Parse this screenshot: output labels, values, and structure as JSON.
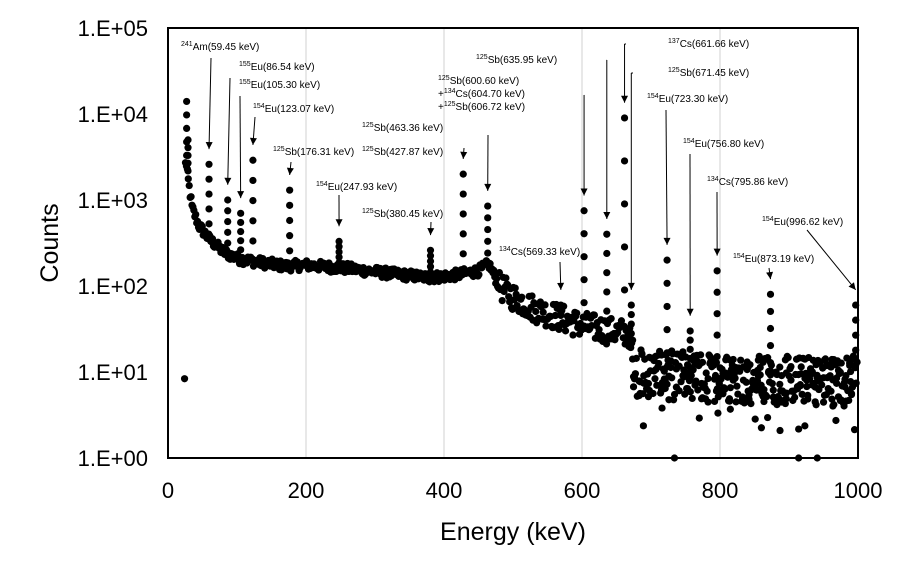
{
  "chart_data": {
    "type": "scatter",
    "title": "",
    "xlabel": "Energy (keV)",
    "ylabel": "Counts",
    "xlim": [
      0,
      1000
    ],
    "ylim": [
      1,
      100000
    ],
    "yscale": "log",
    "grid": "vertical major gridlines",
    "legend": "none",
    "x_ticks": [
      {
        "value": 0,
        "label": "0"
      },
      {
        "value": 200,
        "label": "200"
      },
      {
        "value": 400,
        "label": "400"
      },
      {
        "value": 600,
        "label": "600"
      },
      {
        "value": 800,
        "label": "800"
      },
      {
        "value": 1000,
        "label": "1000"
      }
    ],
    "y_ticks": [
      {
        "value": 1,
        "label": "1.E+00"
      },
      {
        "value": 10,
        "label": "1.E+01"
      },
      {
        "value": 100,
        "label": "1.E+02"
      },
      {
        "value": 1000,
        "label": "1.E+03"
      },
      {
        "value": 10000,
        "label": "1.E+04"
      },
      {
        "value": 100000,
        "label": "1.E+05"
      }
    ],
    "marker_color": "#000000",
    "annotations": [
      {
        "iso": "241",
        "nuc": "Am",
        "energy": "(59.45 keV)",
        "x": 59.45,
        "y": 2600
      },
      {
        "iso": "155",
        "nuc": "Eu",
        "energy": "(86.54 keV)",
        "x": 86.54,
        "y": 1000
      },
      {
        "iso": "155",
        "nuc": "Eu",
        "energy": "(105.30 keV)",
        "x": 105.3,
        "y": 700
      },
      {
        "iso": "154",
        "nuc": "Eu",
        "energy": "(123.07 keV)",
        "x": 123.07,
        "y": 2900
      },
      {
        "iso": "125",
        "nuc": "Sb",
        "energy": "(176.31 keV)",
        "x": 176.31,
        "y": 1300
      },
      {
        "iso": "154",
        "nuc": "Eu",
        "energy": "(247.93 keV)",
        "x": 247.93,
        "y": 330
      },
      {
        "iso": "125",
        "nuc": "Sb",
        "energy": "(380.45 keV)",
        "x": 380.45,
        "y": 260
      },
      {
        "iso": "125",
        "nuc": "Sb",
        "energy": "(427.87 keV)",
        "x": 427.87,
        "y": 2000
      },
      {
        "iso": "125",
        "nuc": "Sb",
        "energy": "(463.36 keV)",
        "x": 463.36,
        "y": 850
      },
      {
        "iso": "125",
        "nuc": "Sb",
        "energy": "(600.60 keV)",
        "line2_prefix": "+",
        "iso2": "134",
        "nuc2": "Cs",
        "energy2": "(604.70 keV)",
        "line3_prefix": "+",
        "iso3": "125",
        "nuc3": "Sb",
        "energy3": "(606.72 keV)",
        "x": 603,
        "y": 750
      },
      {
        "iso": "125",
        "nuc": "Sb",
        "energy": "(635.95 keV)",
        "x": 635.95,
        "y": 400
      },
      {
        "iso": "137",
        "nuc": "Cs",
        "energy": "(661.66 keV)",
        "x": 661.66,
        "y": 9000
      },
      {
        "iso": "125",
        "nuc": "Sb",
        "energy": "(671.45 keV)",
        "x": 671.45,
        "y": 60
      },
      {
        "iso": "154",
        "nuc": "Eu",
        "energy": "(723.30 keV)",
        "x": 723.3,
        "y": 200
      },
      {
        "iso": "154",
        "nuc": "Eu",
        "energy": "(756.80 keV)",
        "x": 756.8,
        "y": 30
      },
      {
        "iso": "134",
        "nuc": "Cs",
        "energy": "(795.86 keV)",
        "x": 795.86,
        "y": 150
      },
      {
        "iso": "134",
        "nuc": "Cs",
        "energy": "(569.33 keV)",
        "x": 569.33,
        "y": 60
      },
      {
        "iso": "154",
        "nuc": "Eu",
        "energy": "(873.19 keV)",
        "x": 873.19,
        "y": 80
      },
      {
        "iso": "154",
        "nuc": "Eu",
        "energy": "(996.62 keV)",
        "x": 996.62,
        "y": 60
      }
    ],
    "peaks": [
      {
        "x": 27,
        "y": 14000
      },
      {
        "x": 29,
        "y": 5000
      },
      {
        "x": 59.45,
        "y": 2600
      },
      {
        "x": 86.54,
        "y": 1000
      },
      {
        "x": 105.3,
        "y": 700
      },
      {
        "x": 123.07,
        "y": 2900
      },
      {
        "x": 176.31,
        "y": 1300
      },
      {
        "x": 247.93,
        "y": 330
      },
      {
        "x": 380.45,
        "y": 260
      },
      {
        "x": 427.87,
        "y": 2000
      },
      {
        "x": 463.36,
        "y": 850
      },
      {
        "x": 569.33,
        "y": 60
      },
      {
        "x": 603,
        "y": 750
      },
      {
        "x": 635.95,
        "y": 400
      },
      {
        "x": 661.66,
        "y": 9000
      },
      {
        "x": 671.45,
        "y": 60
      },
      {
        "x": 723.3,
        "y": 200
      },
      {
        "x": 756.8,
        "y": 30
      },
      {
        "x": 795.86,
        "y": 150
      },
      {
        "x": 873.19,
        "y": 80
      },
      {
        "x": 996.62,
        "y": 60
      }
    ],
    "continuum": [
      {
        "x": 25,
        "y": 3000
      },
      {
        "x": 35,
        "y": 800
      },
      {
        "x": 45,
        "y": 500
      },
      {
        "x": 60,
        "y": 350
      },
      {
        "x": 80,
        "y": 250
      },
      {
        "x": 100,
        "y": 210
      },
      {
        "x": 130,
        "y": 190
      },
      {
        "x": 170,
        "y": 170
      },
      {
        "x": 200,
        "y": 175
      },
      {
        "x": 260,
        "y": 160
      },
      {
        "x": 320,
        "y": 140
      },
      {
        "x": 380,
        "y": 125
      },
      {
        "x": 420,
        "y": 135
      },
      {
        "x": 450,
        "y": 150
      },
      {
        "x": 465,
        "y": 180
      },
      {
        "x": 480,
        "y": 100
      },
      {
        "x": 500,
        "y": 75
      },
      {
        "x": 530,
        "y": 55
      },
      {
        "x": 560,
        "y": 45
      },
      {
        "x": 600,
        "y": 35
      },
      {
        "x": 640,
        "y": 30
      },
      {
        "x": 668,
        "y": 28
      },
      {
        "x": 675,
        "y": 10
      },
      {
        "x": 720,
        "y": 9
      },
      {
        "x": 800,
        "y": 8.5
      },
      {
        "x": 900,
        "y": 8
      },
      {
        "x": 1000,
        "y": 8
      }
    ]
  }
}
